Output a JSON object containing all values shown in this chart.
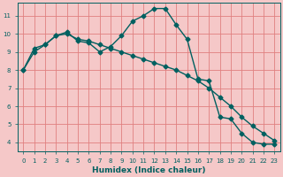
{
  "xlabel": "Humidex (Indice chaleur)",
  "bg_color": "#f5c8c8",
  "plot_bg_color": "#f5c8c8",
  "grid_color": "#e08080",
  "line_color": "#006060",
  "marker": "D",
  "markersize": 2.5,
  "linewidth": 1.0,
  "xlim": [
    -0.5,
    23.5
  ],
  "ylim": [
    3.5,
    11.7
  ],
  "xticks": [
    0,
    1,
    2,
    3,
    4,
    5,
    6,
    7,
    8,
    9,
    10,
    11,
    12,
    13,
    14,
    15,
    16,
    17,
    18,
    19,
    20,
    21,
    22,
    23
  ],
  "yticks": [
    4,
    5,
    6,
    7,
    8,
    9,
    10,
    11
  ],
  "xlabel_fontsize": 6.5,
  "tick_fontsize": 5,
  "series": [
    {
      "x": [
        0,
        1,
        2,
        3,
        4,
        5,
        6,
        7,
        8,
        9,
        10,
        11,
        12,
        13,
        14,
        15,
        16,
        17,
        18,
        19,
        20,
        21,
        22,
        23
      ],
      "y": [
        8.0,
        9.2,
        9.4,
        9.9,
        10.1,
        9.6,
        9.5,
        9.0,
        9.3,
        9.9,
        10.7,
        11.0,
        11.4,
        11.4,
        10.5,
        9.7,
        7.5,
        7.4,
        5.4,
        5.3,
        4.5,
        4.0,
        3.9,
        3.9
      ]
    },
    {
      "x": [
        0,
        1,
        2,
        3,
        4,
        5,
        6,
        7,
        8,
        9,
        10,
        11,
        12,
        13,
        14,
        15,
        16,
        17,
        18,
        19,
        20,
        21,
        22,
        23
      ],
      "y": [
        8.0,
        9.0,
        9.4,
        9.9,
        10.0,
        9.7,
        9.6,
        9.4,
        9.2,
        9.0,
        8.8,
        8.6,
        8.4,
        8.2,
        8.0,
        7.7,
        7.4,
        7.0,
        6.5,
        6.0,
        5.4,
        4.9,
        4.5,
        4.1
      ]
    }
  ]
}
